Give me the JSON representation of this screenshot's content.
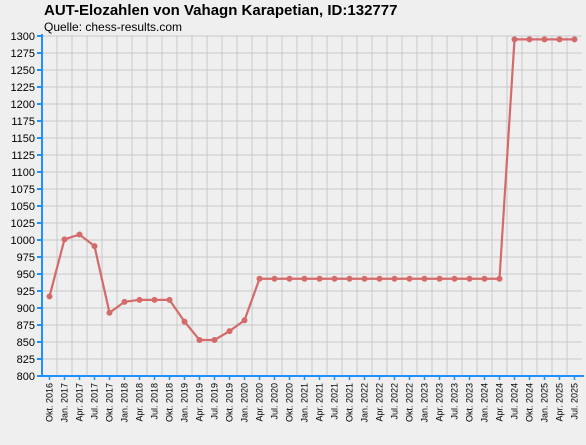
{
  "chart_data": {
    "type": "line",
    "title": "AUT-Elozahlen von Vahagn Karapetian, ID:132777",
    "subtitle": "Quelle: chess-results.com",
    "xlabel": "",
    "ylabel": "",
    "ylim": [
      800,
      1300
    ],
    "yticks": [
      800,
      825,
      850,
      875,
      900,
      925,
      950,
      975,
      1000,
      1025,
      1050,
      1075,
      1100,
      1125,
      1150,
      1175,
      1200,
      1225,
      1250,
      1275,
      1300
    ],
    "grid": true,
    "legend": "none",
    "colors": {
      "line": "#d46a6a",
      "axis": "#1e90ff",
      "grid": "#c8c8c8",
      "background": "#efefef"
    },
    "categories": [
      "Okt. 2016",
      "Jan. 2017",
      "Apr. 2017",
      "Jul. 2017",
      "Okt. 2017",
      "Jan. 2018",
      "Apr. 2018",
      "Jul. 2018",
      "Okt. 2018",
      "Jan. 2019",
      "Apr. 2019",
      "Jul. 2019",
      "Okt. 2019",
      "Jan. 2020",
      "Apr. 2020",
      "Jul. 2020",
      "Okt. 2020",
      "Jan. 2021",
      "Apr. 2021",
      "Jul. 2021",
      "Okt. 2021",
      "Jan. 2022",
      "Apr. 2022",
      "Jul. 2022",
      "Okt. 2022",
      "Jan. 2023",
      "Apr. 2023",
      "Jul. 2023",
      "Okt. 2023",
      "Jan. 2024",
      "Apr. 2024",
      "Jul. 2024",
      "Okt. 2024",
      "Jan. 2025",
      "Apr. 2025",
      "Jul. 2025"
    ],
    "series": [
      {
        "values": [
          917,
          1001,
          1008,
          991,
          893,
          909,
          912,
          912,
          912,
          880,
          853,
          853,
          866,
          882,
          943,
          943,
          943,
          943,
          943,
          943,
          943,
          943,
          943,
          943,
          943,
          943,
          943,
          943,
          943,
          943,
          943,
          1295,
          1295,
          1295,
          1295,
          1295
        ]
      }
    ]
  }
}
